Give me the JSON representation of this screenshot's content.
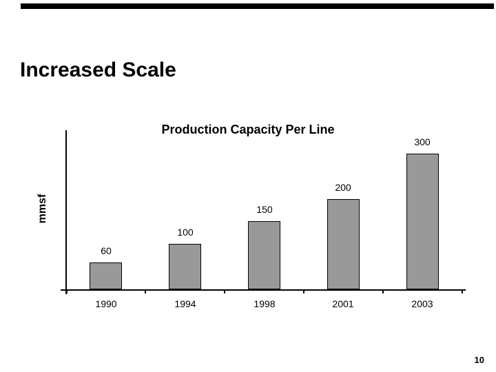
{
  "slide": {
    "title": "Increased Scale",
    "page_number": "10"
  },
  "chart": {
    "title": "Production Capacity Per Line",
    "y_axis_label": "mmsf",
    "bar_fill_color": "#999999",
    "bar_border_color": "#000000",
    "axis_color": "#000000",
    "text_color": "#000000"
  },
  "chart_data": {
    "type": "bar",
    "title": "Production Capacity Per Line",
    "categories": [
      "1990",
      "1994",
      "1998",
      "2001",
      "2003"
    ],
    "values": [
      60,
      100,
      150,
      200,
      300
    ],
    "data_labels": [
      "60",
      "100",
      "150",
      "200",
      "300"
    ],
    "xlabel": "",
    "ylabel": "mmsf",
    "ylim": [
      0,
      330
    ],
    "grid": false,
    "legend": false,
    "y_ticks_shown": false,
    "bar_color": "#999999"
  }
}
